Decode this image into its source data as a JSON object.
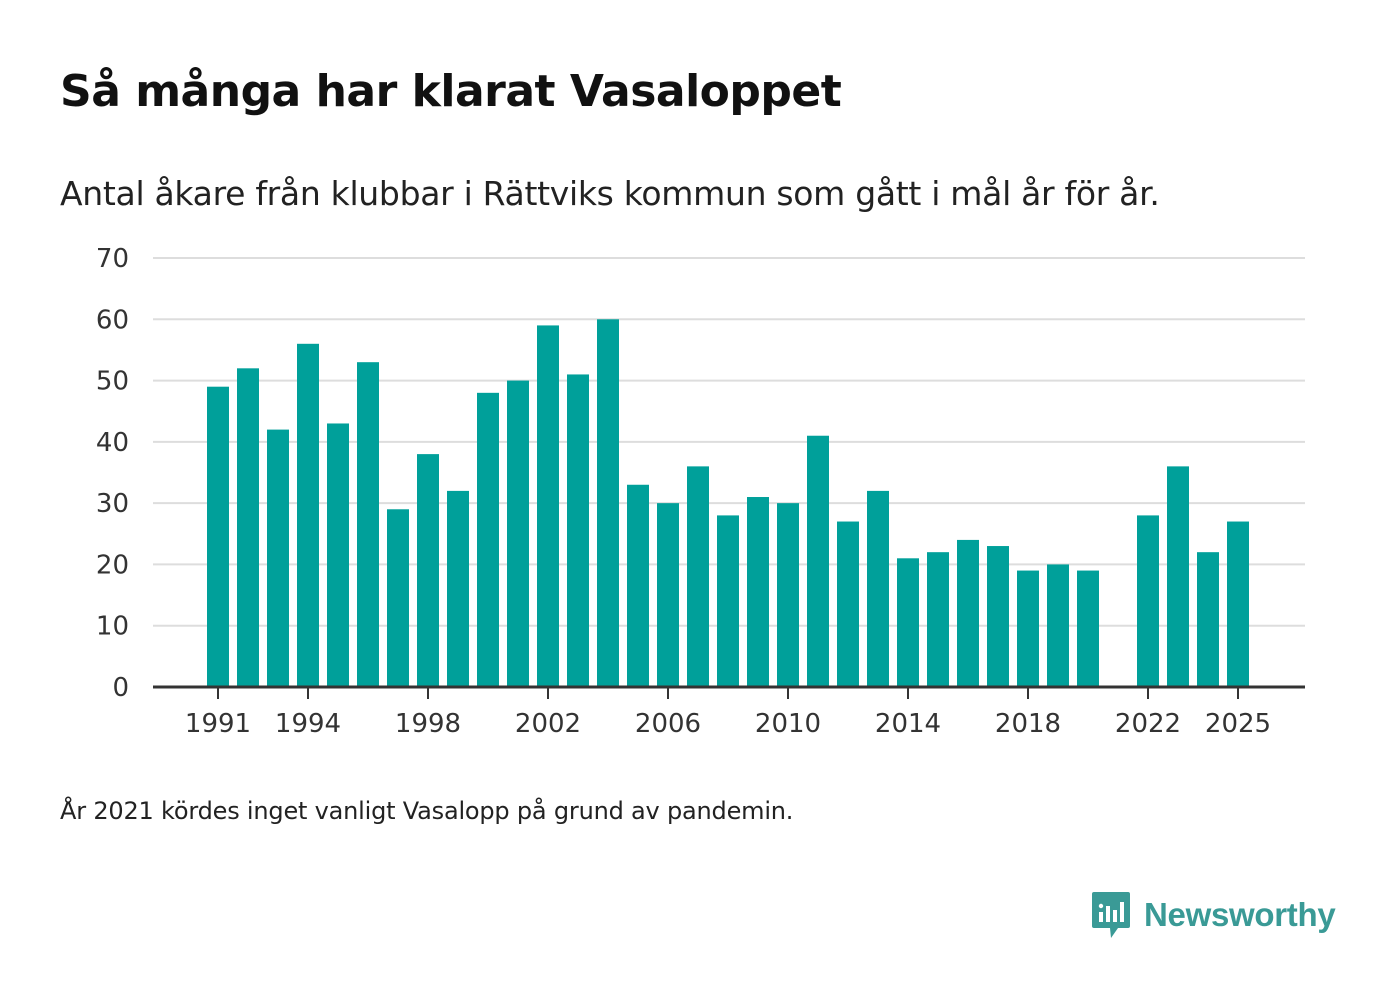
{
  "title": "Så många har klarat Vasaloppet",
  "subtitle": "Antal åkare från klubbar i Rättviks kommun som gått i mål år för år.",
  "footnote": "År 2021 kördes inget vanligt Vasalopp på grund av pandemin.",
  "brand": {
    "name": "Newsworthy",
    "color": "#3a9a96"
  },
  "colors": {
    "bar": "#00a09a",
    "grid": "#dddddd",
    "axis": "#333333"
  },
  "chart_data": {
    "type": "bar",
    "title": "Så många har klarat Vasaloppet",
    "xlabel": "",
    "ylabel": "",
    "categories": [
      1991,
      1992,
      1993,
      1994,
      1995,
      1996,
      1997,
      1998,
      1999,
      2000,
      2001,
      2002,
      2003,
      2004,
      2005,
      2006,
      2007,
      2008,
      2009,
      2010,
      2011,
      2012,
      2013,
      2014,
      2015,
      2016,
      2017,
      2018,
      2019,
      2020,
      2021,
      2022,
      2023,
      2024,
      2025
    ],
    "values": [
      49,
      52,
      42,
      56,
      43,
      53,
      29,
      38,
      32,
      48,
      50,
      59,
      51,
      60,
      33,
      30,
      36,
      28,
      31,
      30,
      41,
      27,
      32,
      21,
      22,
      24,
      23,
      19,
      20,
      19,
      null,
      28,
      36,
      22,
      27
    ],
    "x_tick_labels": [
      "1991",
      "1994",
      "1998",
      "2002",
      "2006",
      "2010",
      "2014",
      "2018",
      "2022",
      "2025"
    ],
    "y_ticks": [
      0,
      10,
      20,
      30,
      40,
      50,
      60,
      70
    ],
    "ylim": [
      0,
      70
    ],
    "grid": true
  }
}
